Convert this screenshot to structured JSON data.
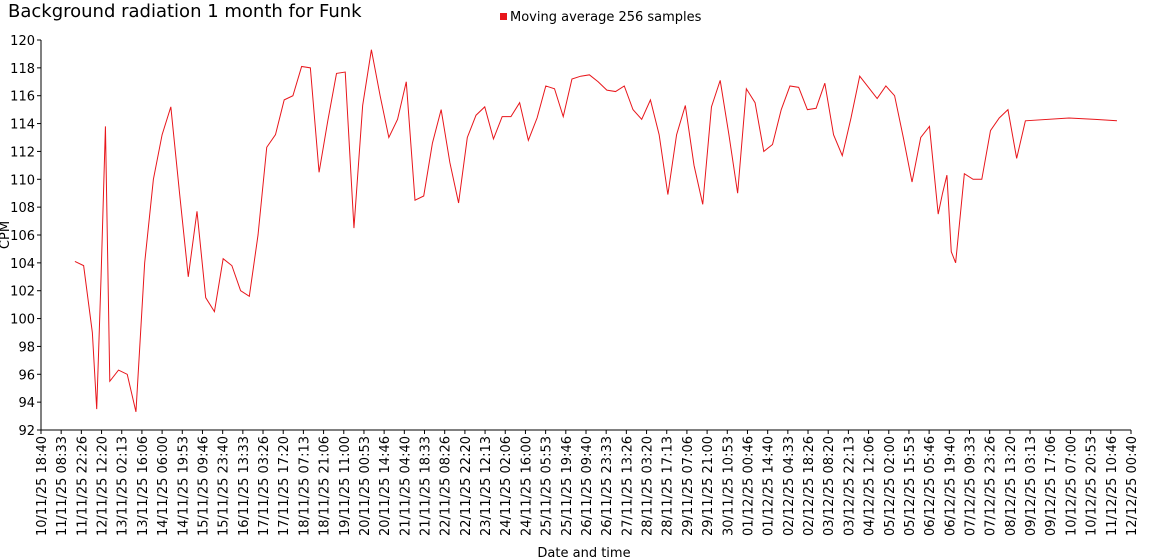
{
  "chart_data": {
    "type": "line",
    "title": "Background radiation 1 month for Funk",
    "x_label": "Date and time",
    "y_label": "CPM",
    "legend": "top",
    "series": [
      {
        "name": "Moving average 256 samples",
        "color": "#e8161b",
        "x": [
          "11/11/25 18:00",
          "12/11/25 00:00",
          "12/11/25 06:00",
          "12/11/25 09:00",
          "12/11/25 12:00",
          "12/11/25 15:00",
          "12/11/25 18:00",
          "13/11/25 00:00",
          "13/11/25 06:00",
          "13/11/25 12:00",
          "13/11/25 18:00",
          "14/11/25 00:00",
          "14/11/25 06:00",
          "14/11/25 12:00",
          "14/11/25 18:00",
          "15/11/25 00:00",
          "15/11/25 06:00",
          "15/11/25 12:00",
          "15/11/25 18:00",
          "16/11/25 00:00",
          "16/11/25 06:00",
          "16/11/25 12:00",
          "16/11/25 18:00",
          "17/11/25 00:00",
          "17/11/25 06:00",
          "17/11/25 12:00",
          "17/11/25 18:00",
          "18/11/25 00:00",
          "18/11/25 06:00",
          "18/11/25 12:00",
          "18/11/25 18:00",
          "19/11/25 00:00",
          "19/11/25 06:00",
          "19/11/25 12:00",
          "19/11/25 18:00",
          "20/11/25 00:00",
          "20/11/25 06:00",
          "20/11/25 12:00",
          "20/11/25 18:00",
          "21/11/25 00:00",
          "21/11/25 06:00",
          "21/11/25 12:00",
          "21/11/25 18:00",
          "22/11/25 00:00",
          "22/11/25 06:00",
          "22/11/25 12:00",
          "22/11/25 18:00",
          "23/11/25 00:00",
          "23/11/25 06:00",
          "23/11/25 12:00",
          "23/11/25 18:00",
          "24/11/25 00:00",
          "24/11/25 06:00",
          "24/11/25 12:00",
          "24/11/25 18:00",
          "25/11/25 00:00",
          "25/11/25 06:00",
          "25/11/25 12:00",
          "25/11/25 18:00",
          "26/11/25 00:00",
          "26/11/25 06:00",
          "26/11/25 12:00",
          "26/11/25 18:00",
          "27/11/25 00:00",
          "27/11/25 06:00",
          "27/11/25 12:00",
          "27/11/25 18:00",
          "28/11/25 00:00",
          "28/11/25 06:00",
          "28/11/25 12:00",
          "28/11/25 18:00",
          "29/11/25 00:00",
          "29/11/25 06:00",
          "29/11/25 12:00",
          "29/11/25 18:00",
          "30/11/25 00:00",
          "30/11/25 06:00",
          "30/11/25 12:00",
          "30/11/25 18:00",
          "01/12/25 00:00",
          "01/12/25 06:00",
          "01/12/25 12:00",
          "01/12/25 18:00",
          "02/12/25 00:00",
          "02/12/25 06:00",
          "02/12/25 12:00",
          "02/12/25 18:00",
          "03/12/25 00:00",
          "03/12/25 06:00",
          "03/12/25 12:00",
          "03/12/25 18:00",
          "04/12/25 00:00",
          "04/12/25 06:00",
          "04/12/25 12:00",
          "04/12/25 18:00",
          "05/12/25 00:00",
          "05/12/25 06:00",
          "05/12/25 12:00",
          "05/12/25 18:00",
          "06/12/25 00:00",
          "06/12/25 06:00",
          "06/12/25 12:00",
          "06/12/25 15:00",
          "06/12/25 18:00",
          "06/12/25 21:00",
          "07/12/25 00:00",
          "07/12/25 06:00",
          "07/12/25 12:00",
          "07/12/25 18:00",
          "08/12/25 00:00",
          "08/12/25 06:00",
          "08/12/25 12:00",
          "08/12/25 18:00",
          "09/12/25 00:00",
          "10/12/25 06:00",
          "11/12/25 00:00",
          "11/12/25 15:00"
        ],
        "values": [
          104.1,
          103.8,
          99,
          93.5,
          103,
          113.8,
          95.5,
          96.3,
          96,
          93.3,
          104,
          110,
          113.2,
          115.2,
          109,
          103,
          107.7,
          101.5,
          100.5,
          104.3,
          103.8,
          102,
          101.6,
          106,
          112.3,
          113.2,
          115.7,
          116,
          118.1,
          118,
          110.5,
          114.2,
          117.6,
          117.7,
          106.5,
          115.3,
          119.3,
          116,
          113,
          114.3,
          117,
          108.5,
          108.8,
          112.6,
          115,
          111.2,
          108.3,
          113,
          114.6,
          115.2,
          112.9,
          114.5,
          114.5,
          115.5,
          112.8,
          114.4,
          116.7,
          116.5,
          114.5,
          117.2,
          117.4,
          117.5,
          117,
          116.4,
          116.3,
          116.7,
          115,
          114.3,
          115.7,
          113.2,
          108.9,
          113.2,
          115.3,
          111,
          108.2,
          115.2,
          117.1,
          113.2,
          109,
          116.5,
          115.5,
          112,
          112.5,
          115,
          116.7,
          116.6,
          115,
          115.1,
          116.9,
          113.2,
          111.7,
          114.4,
          117.4,
          116.6,
          115.8,
          116.7,
          116,
          113,
          109.8,
          113,
          113.8,
          107.5,
          109,
          110.3,
          104.8,
          104,
          110.4,
          110,
          110,
          113.5,
          114.4,
          115,
          111.5,
          114.2,
          114.4,
          114.3,
          114.2
        ]
      }
    ],
    "xlim": [
      "10/11/25 18:40",
      "12/12/25 00:40"
    ],
    "xticks": [
      "10/11/25 18:40",
      "11/11/25 08:33",
      "11/11/25 22:26",
      "12/11/25 12:20",
      "13/11/25 02:13",
      "13/11/25 16:06",
      "14/11/25 06:00",
      "14/11/25 19:53",
      "15/11/25 09:46",
      "15/11/25 23:40",
      "16/11/25 13:33",
      "17/11/25 03:26",
      "17/11/25 17:20",
      "18/11/25 07:13",
      "18/11/25 21:06",
      "19/11/25 11:00",
      "20/11/25 00:53",
      "20/11/25 14:46",
      "21/11/25 04:40",
      "21/11/25 18:33",
      "22/11/25 08:26",
      "22/11/25 22:20",
      "23/11/25 12:13",
      "24/11/25 02:06",
      "24/11/25 16:00",
      "25/11/25 05:53",
      "25/11/25 19:46",
      "26/11/25 09:40",
      "26/11/25 23:33",
      "27/11/25 13:26",
      "28/11/25 03:20",
      "28/11/25 17:13",
      "29/11/25 07:06",
      "29/11/25 21:00",
      "30/11/25 10:53",
      "01/12/25 00:46",
      "01/12/25 14:40",
      "02/12/25 04:33",
      "02/12/25 18:26",
      "03/12/25 08:20",
      "03/12/25 22:13",
      "04/12/25 12:06",
      "05/12/25 02:00",
      "05/12/25 15:53",
      "06/12/25 05:46",
      "06/12/25 19:40",
      "07/12/25 09:33",
      "07/12/25 23:26",
      "08/12/25 13:20",
      "09/12/25 03:13",
      "09/12/25 17:06",
      "10/12/25 07:00",
      "10/12/25 20:53",
      "11/12/25 10:46",
      "12/12/25 00:40"
    ],
    "ylim": [
      92,
      120
    ],
    "yticks": [
      92,
      94,
      96,
      98,
      100,
      102,
      104,
      106,
      108,
      110,
      112,
      114,
      116,
      118,
      120
    ],
    "grid": false
  }
}
